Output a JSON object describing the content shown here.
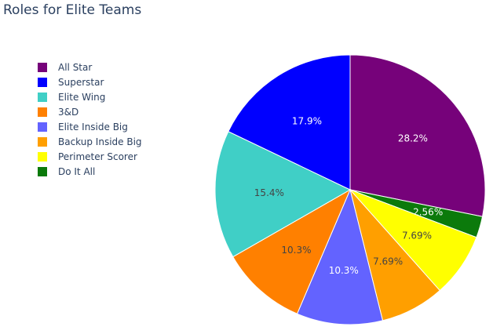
{
  "chart_data": {
    "type": "pie",
    "title": "Roles for Elite Teams",
    "legend_placement": "left",
    "direction": "clockwise",
    "slices": [
      {
        "label": "All Star",
        "value": 28.2,
        "text": "28.2%",
        "color": "#76027a",
        "text_color": "#ffffff"
      },
      {
        "label": "Do It All",
        "value": 2.56,
        "text": "2.56%",
        "color": "#0b7a0b",
        "text_color": "#ffffff"
      },
      {
        "label": "Perimeter Scorer",
        "value": 7.69,
        "text": "7.69%",
        "color": "#ffff00",
        "text_color": "#444444"
      },
      {
        "label": "Backup Inside Big",
        "value": 7.69,
        "text": "7.69%",
        "color": "#ff9f00",
        "text_color": "#444444"
      },
      {
        "label": "Elite Inside Big",
        "value": 10.3,
        "text": "10.3%",
        "color": "#6363ff",
        "text_color": "#ffffff"
      },
      {
        "label": "3&D",
        "value": 10.3,
        "text": "10.3%",
        "color": "#ff8000",
        "text_color": "#444444"
      },
      {
        "label": "Elite Wing",
        "value": 15.4,
        "text": "15.4%",
        "color": "#40cfc6",
        "text_color": "#444444"
      },
      {
        "label": "Superstar",
        "value": 17.9,
        "text": "17.9%",
        "color": "#0000ff",
        "text_color": "#ffffff"
      }
    ],
    "legend": [
      {
        "label": "All Star",
        "color": "#76027a"
      },
      {
        "label": "Superstar",
        "color": "#0000ff"
      },
      {
        "label": "Elite Wing",
        "color": "#40cfc6"
      },
      {
        "label": "3&D",
        "color": "#ff8000"
      },
      {
        "label": "Elite Inside Big",
        "color": "#6363ff"
      },
      {
        "label": "Backup Inside Big",
        "color": "#ff9f00"
      },
      {
        "label": "Perimeter Scorer",
        "color": "#ffff00"
      },
      {
        "label": "Do It All",
        "color": "#0b7a0b"
      }
    ]
  }
}
